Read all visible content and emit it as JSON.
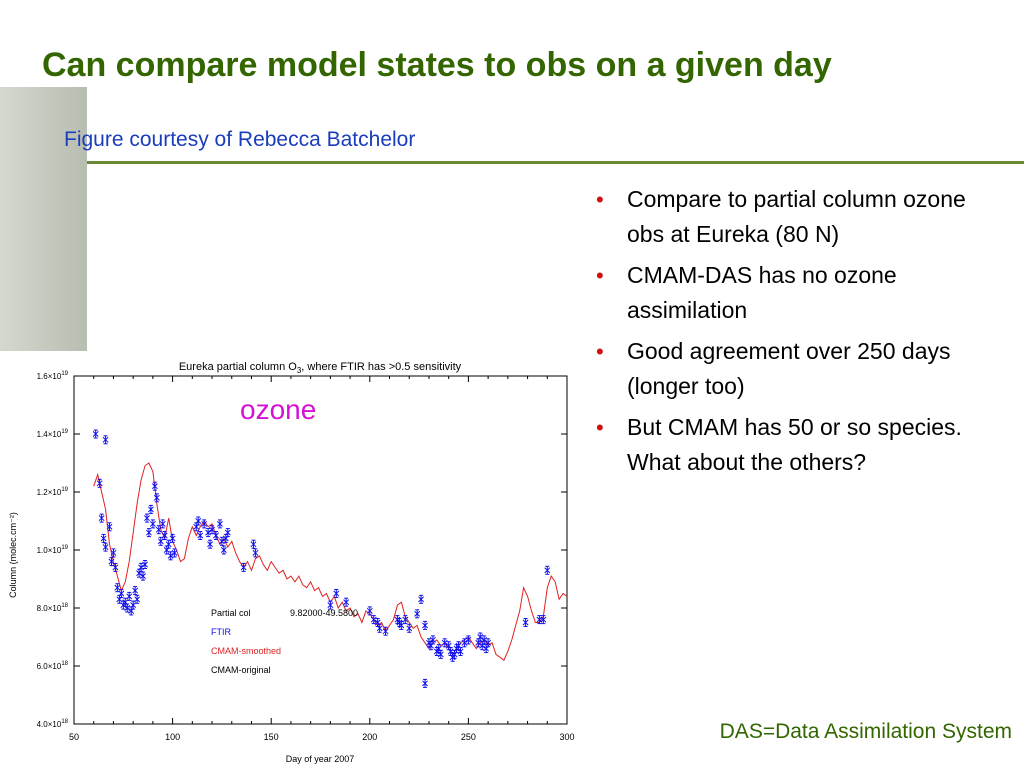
{
  "slide": {
    "title": "Can compare model states to obs on a given day",
    "subtitle": "Figure courtesy of Rebecca Batchelor",
    "bullets": [
      "Compare to partial column ozone obs at Eureka (80 N)",
      "CMAM-DAS has no ozone assimilation",
      "Good agreement over 250 days (longer too)",
      "But CMAM has 50 or so species.  What about the others?"
    ],
    "footnote": "DAS=Data Assimilation System",
    "overlay_label": "ozone",
    "colors": {
      "title": "#336600",
      "subtitle": "#1a3dbb",
      "bullet": "#d01010",
      "overlay": "#d412d4"
    }
  },
  "chart_data": {
    "type": "line",
    "title_parts": {
      "prefix": "Eureka partial column O",
      "subscript": "3",
      "suffix": ", where FTIR has >0.5 sensitivity"
    },
    "xlabel": "Day of year 2007",
    "ylabel": "Column (molec.cm⁻²)",
    "xlim": [
      50,
      300
    ],
    "ylim": [
      4e+18,
      1.6e+19
    ],
    "xticks": [
      50,
      100,
      150,
      200,
      250,
      300
    ],
    "yticks": [
      {
        "value": 4e+18,
        "mant": "4.0×10",
        "exp": "18"
      },
      {
        "value": 6e+18,
        "mant": "6.0×10",
        "exp": "18"
      },
      {
        "value": 8e+18,
        "mant": "8.0×10",
        "exp": "18"
      },
      {
        "value": 1e+19,
        "mant": "1.0×10",
        "exp": "19"
      },
      {
        "value": 1.2e+19,
        "mant": "1.2×10",
        "exp": "19"
      },
      {
        "value": 1.4e+19,
        "mant": "1.4×10",
        "exp": "19"
      },
      {
        "value": 1.6e+19,
        "mant": "1.6×10",
        "exp": "19"
      }
    ],
    "legend": {
      "position": "lower-middle",
      "header_label": "Partial col",
      "header_value": "9.82000-49.5800",
      "entries": [
        {
          "name": "FTIR",
          "color": "#1010ee"
        },
        {
          "name": "CMAM-smoothed",
          "color": "#e02020"
        },
        {
          "name": "CMAM-original",
          "color": "#000000"
        }
      ]
    },
    "series": [
      {
        "name": "CMAM-smoothed",
        "color": "#e02020",
        "points": [
          [
            60,
            12.2
          ],
          [
            62,
            12.6
          ],
          [
            64,
            12.0
          ],
          [
            66,
            11.4
          ],
          [
            68,
            10.2
          ],
          [
            70,
            9.6
          ],
          [
            72,
            9.1
          ],
          [
            74,
            8.6
          ],
          [
            76,
            8.9
          ],
          [
            78,
            9.6
          ],
          [
            80,
            10.6
          ],
          [
            82,
            11.6
          ],
          [
            84,
            12.4
          ],
          [
            86,
            12.9
          ],
          [
            88,
            13.0
          ],
          [
            90,
            12.7
          ],
          [
            92,
            11.6
          ],
          [
            94,
            10.7
          ],
          [
            96,
            10.4
          ],
          [
            98,
            11.1
          ],
          [
            100,
            10.3
          ],
          [
            102,
            10.0
          ],
          [
            104,
            9.6
          ],
          [
            106,
            9.7
          ],
          [
            108,
            10.4
          ],
          [
            110,
            10.8
          ],
          [
            112,
            10.5
          ],
          [
            114,
            10.8
          ],
          [
            116,
            11.0
          ],
          [
            118,
            10.8
          ],
          [
            120,
            10.9
          ],
          [
            122,
            10.5
          ],
          [
            124,
            10.2
          ],
          [
            126,
            10.4
          ],
          [
            128,
            10.1
          ],
          [
            130,
            10.3
          ],
          [
            132,
            9.9
          ],
          [
            134,
            9.6
          ],
          [
            136,
            9.4
          ],
          [
            138,
            9.6
          ],
          [
            140,
            9.3
          ],
          [
            142,
            9.7
          ],
          [
            144,
            9.8
          ],
          [
            146,
            9.5
          ],
          [
            148,
            9.3
          ],
          [
            150,
            9.6
          ],
          [
            152,
            9.4
          ],
          [
            154,
            9.2
          ],
          [
            156,
            9.3
          ],
          [
            158,
            9.0
          ],
          [
            160,
            9.1
          ],
          [
            162,
            8.9
          ],
          [
            164,
            9.1
          ],
          [
            166,
            8.8
          ],
          [
            168,
            8.7
          ],
          [
            170,
            8.9
          ],
          [
            172,
            8.6
          ],
          [
            174,
            8.7
          ],
          [
            176,
            8.4
          ],
          [
            178,
            8.5
          ],
          [
            180,
            8.2
          ],
          [
            182,
            8.4
          ],
          [
            184,
            8.0
          ],
          [
            186,
            8.2
          ],
          [
            188,
            7.9
          ],
          [
            190,
            8.0
          ],
          [
            192,
            7.7
          ],
          [
            194,
            7.8
          ],
          [
            196,
            7.5
          ],
          [
            198,
            7.9
          ],
          [
            200,
            7.8
          ],
          [
            202,
            7.6
          ],
          [
            204,
            7.4
          ],
          [
            206,
            7.5
          ],
          [
            208,
            7.2
          ],
          [
            210,
            7.4
          ],
          [
            212,
            7.6
          ],
          [
            214,
            8.1
          ],
          [
            216,
            8.2
          ],
          [
            218,
            7.7
          ],
          [
            220,
            7.5
          ],
          [
            222,
            7.3
          ],
          [
            224,
            7.4
          ],
          [
            226,
            7.0
          ],
          [
            228,
            6.8
          ],
          [
            230,
            6.6
          ],
          [
            232,
            6.8
          ],
          [
            234,
            6.9
          ],
          [
            236,
            6.7
          ],
          [
            238,
            6.8
          ],
          [
            240,
            6.6
          ],
          [
            242,
            6.4
          ],
          [
            244,
            6.6
          ],
          [
            246,
            6.8
          ],
          [
            248,
            6.9
          ],
          [
            250,
            7.0
          ],
          [
            252,
            6.8
          ],
          [
            254,
            6.6
          ],
          [
            256,
            6.8
          ],
          [
            258,
            6.9
          ],
          [
            260,
            6.7
          ],
          [
            262,
            6.8
          ],
          [
            264,
            6.4
          ],
          [
            266,
            6.3
          ],
          [
            268,
            6.2
          ],
          [
            270,
            6.5
          ],
          [
            272,
            6.9
          ],
          [
            274,
            7.4
          ],
          [
            276,
            7.9
          ],
          [
            278,
            8.7
          ],
          [
            280,
            8.4
          ],
          [
            282,
            7.9
          ],
          [
            284,
            7.5
          ],
          [
            286,
            7.5
          ],
          [
            288,
            7.7
          ],
          [
            290,
            8.7
          ],
          [
            292,
            9.1
          ],
          [
            294,
            8.9
          ],
          [
            296,
            8.3
          ],
          [
            298,
            8.5
          ],
          [
            300,
            8.4
          ]
        ]
      },
      {
        "name": "FTIR",
        "color": "#1010ee",
        "points": [
          [
            61,
            14.0
          ],
          [
            66,
            13.8
          ],
          [
            63,
            12.3
          ],
          [
            64,
            11.1
          ],
          [
            65,
            10.4
          ],
          [
            66,
            10.1
          ],
          [
            68,
            10.8
          ],
          [
            69,
            9.6
          ],
          [
            70,
            9.9
          ],
          [
            71,
            9.4
          ],
          [
            72,
            8.7
          ],
          [
            73,
            8.3
          ],
          [
            74,
            8.5
          ],
          [
            75,
            8.1
          ],
          [
            76,
            8.2
          ],
          [
            77,
            8.0
          ],
          [
            78,
            8.4
          ],
          [
            79,
            7.9
          ],
          [
            80,
            8.1
          ],
          [
            81,
            8.6
          ],
          [
            82,
            8.3
          ],
          [
            83,
            9.2
          ],
          [
            84,
            9.4
          ],
          [
            85,
            9.1
          ],
          [
            86,
            9.5
          ],
          [
            87,
            11.1
          ],
          [
            88,
            10.6
          ],
          [
            89,
            11.4
          ],
          [
            90,
            10.9
          ],
          [
            91,
            12.2
          ],
          [
            92,
            11.8
          ],
          [
            93,
            10.7
          ],
          [
            94,
            10.3
          ],
          [
            95,
            10.9
          ],
          [
            96,
            10.5
          ],
          [
            97,
            10.0
          ],
          [
            98,
            10.2
          ],
          [
            99,
            9.8
          ],
          [
            100,
            10.4
          ],
          [
            101,
            9.9
          ],
          [
            112,
            10.8
          ],
          [
            113,
            11.0
          ],
          [
            114,
            10.5
          ],
          [
            116,
            10.9
          ],
          [
            118,
            10.6
          ],
          [
            119,
            10.2
          ],
          [
            120,
            10.7
          ],
          [
            122,
            10.5
          ],
          [
            124,
            10.9
          ],
          [
            125,
            10.3
          ],
          [
            126,
            10.0
          ],
          [
            127,
            10.4
          ],
          [
            128,
            10.6
          ],
          [
            136,
            9.4
          ],
          [
            141,
            10.2
          ],
          [
            142,
            9.9
          ],
          [
            180,
            8.1
          ],
          [
            183,
            8.5
          ],
          [
            188,
            8.2
          ],
          [
            200,
            7.9
          ],
          [
            202,
            7.6
          ],
          [
            204,
            7.5
          ],
          [
            205,
            7.3
          ],
          [
            208,
            7.2
          ],
          [
            214,
            7.6
          ],
          [
            215,
            7.5
          ],
          [
            216,
            7.4
          ],
          [
            218,
            7.6
          ],
          [
            220,
            7.3
          ],
          [
            224,
            7.8
          ],
          [
            226,
            8.3
          ],
          [
            228,
            7.4
          ],
          [
            230,
            6.8
          ],
          [
            231,
            6.7
          ],
          [
            232,
            6.9
          ],
          [
            234,
            6.5
          ],
          [
            235,
            6.6
          ],
          [
            236,
            6.4
          ],
          [
            238,
            6.8
          ],
          [
            240,
            6.7
          ],
          [
            241,
            6.5
          ],
          [
            242,
            6.3
          ],
          [
            243,
            6.4
          ],
          [
            244,
            6.6
          ],
          [
            245,
            6.7
          ],
          [
            246,
            6.5
          ],
          [
            248,
            6.8
          ],
          [
            250,
            6.9
          ],
          [
            255,
            6.8
          ],
          [
            256,
            7.0
          ],
          [
            257,
            6.7
          ],
          [
            258,
            6.9
          ],
          [
            259,
            6.6
          ],
          [
            260,
            6.8
          ],
          [
            228,
            5.4
          ],
          [
            279,
            7.5
          ],
          [
            286,
            7.6
          ],
          [
            288,
            7.6
          ],
          [
            290,
            9.3
          ]
        ]
      }
    ]
  }
}
